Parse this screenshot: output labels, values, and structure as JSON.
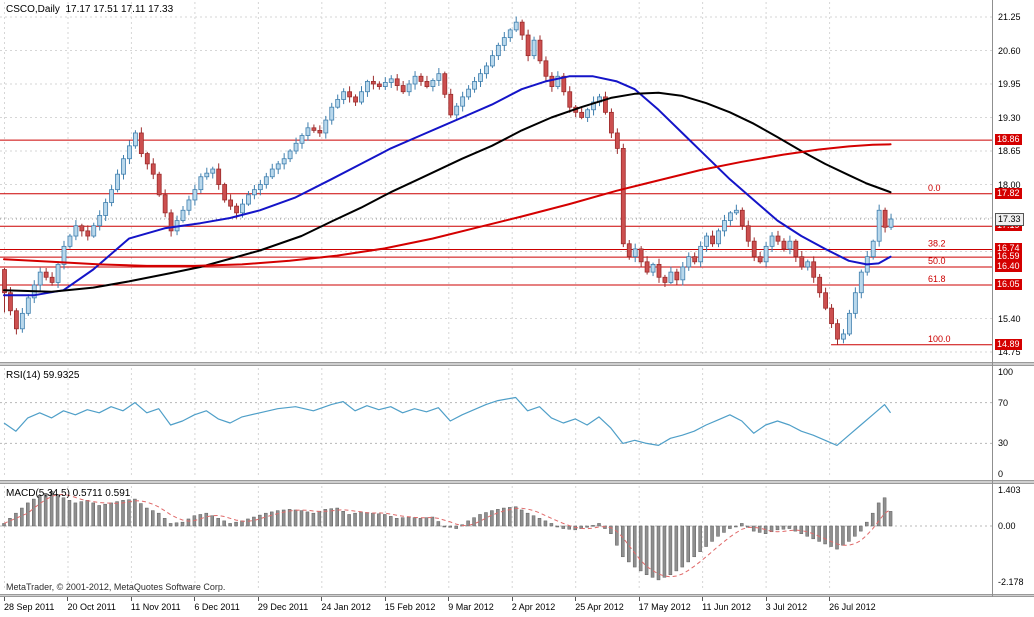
{
  "header": {
    "symbol_label": "CSCO,Daily  17.17 17.51 17.11 17.33"
  },
  "footer": {
    "copyright": "MetaTrader, © 2001-2012, MetaQuotes Software Corp."
  },
  "rsi": {
    "label": "RSI(14) 59.9325"
  },
  "macd": {
    "label": "MACD(5,34,5) 0.5711 0.591"
  },
  "axes": {
    "price_grid": [
      21.25,
      20.6,
      19.95,
      19.3,
      18.65,
      18.0,
      17.35,
      16.7,
      15.4,
      14.75
    ],
    "price_labels": [
      21.25,
      20.6,
      19.95,
      19.3,
      18.65,
      18.0,
      15.4,
      14.75
    ],
    "line_badges": [
      18.86,
      17.82,
      17.19,
      16.74,
      16.59,
      16.4,
      16.05,
      14.89
    ],
    "current_price": 17.33,
    "rsi_labels": [
      100,
      70,
      30,
      0
    ],
    "macd_labels": [
      {
        "text": "1.403",
        "v": 1.403
      },
      {
        "text": "0.00",
        "v": 0
      },
      {
        "text": "-2.178",
        "v": -2.178
      }
    ],
    "time_ticks": [
      {
        "label": "28 Sep 2011",
        "i": 0
      },
      {
        "label": "20 Oct 2011",
        "i": 10.67
      },
      {
        "label": "11 Nov 2011",
        "i": 21.33
      },
      {
        "label": "6 Dec 2011",
        "i": 32
      },
      {
        "label": "29 Dec 2011",
        "i": 42.67
      },
      {
        "label": "24 Jan 2012",
        "i": 53.33
      },
      {
        "label": "15 Feb 2012",
        "i": 64
      },
      {
        "label": "9 Mar 2012",
        "i": 74.67
      },
      {
        "label": "2 Apr 2012",
        "i": 85.33
      },
      {
        "label": "25 Apr 2012",
        "i": 96
      },
      {
        "label": "17 May 2012",
        "i": 106.67
      },
      {
        "label": "11 Jun 2012",
        "i": 117.33
      },
      {
        "label": "3 Jul 2012",
        "i": 128
      },
      {
        "label": "26 Jul 2012",
        "i": 138.67
      }
    ]
  },
  "colors": {
    "background": "#ffffff",
    "grid": "#d6d6d6",
    "level_line": "#b8b8b8",
    "candle_up_fill": "#b9d8ec",
    "candle_up_border": "#3f7fae",
    "candle_down_fill": "#cc4f4f",
    "candle_down_border": "#9c2c2c",
    "ma_blue": "#1414c8",
    "ma_black": "#000000",
    "ma_red": "#d40000",
    "fib_line": "#cc0000",
    "badge_bg": "#d40000",
    "rsi_line": "#4f9fc8",
    "macd_bar_fill": "#8f8f8f",
    "macd_bar_border": "#5f5f5f",
    "macd_signal": "#e06a6a",
    "current_line": "#999999"
  },
  "chart_data": [
    {
      "pane": "price",
      "type": "candlestick",
      "symbol": "CSCO",
      "timeframe": "Daily",
      "ohlc_current": {
        "open": 17.17,
        "high": 17.51,
        "low": 17.11,
        "close": 17.33
      },
      "y_range": [
        14.75,
        21.25
      ],
      "x_range": [
        "28 Sep 2011",
        "Aug 2012"
      ],
      "first_open": 16.35,
      "closes": [
        15.9,
        15.55,
        15.2,
        15.5,
        15.8,
        16.05,
        16.3,
        16.2,
        16.1,
        16.45,
        16.8,
        17.0,
        17.2,
        17.1,
        17.0,
        17.2,
        17.4,
        17.65,
        17.9,
        18.2,
        18.5,
        18.75,
        19.0,
        18.6,
        18.4,
        18.2,
        17.8,
        17.45,
        17.1,
        17.3,
        17.5,
        17.7,
        17.9,
        18.15,
        18.22,
        18.3,
        18.0,
        17.7,
        17.58,
        17.45,
        17.62,
        17.8,
        17.9,
        18.0,
        18.15,
        18.3,
        18.4,
        18.5,
        18.65,
        18.8,
        18.95,
        19.1,
        19.05,
        19.0,
        19.25,
        19.5,
        19.65,
        19.8,
        19.7,
        19.6,
        19.8,
        20.0,
        19.95,
        19.9,
        19.98,
        20.05,
        19.92,
        19.8,
        19.95,
        20.1,
        20.0,
        19.9,
        20.02,
        20.15,
        19.75,
        19.35,
        19.52,
        19.7,
        19.85,
        20.0,
        20.15,
        20.3,
        20.5,
        20.7,
        20.85,
        21.0,
        21.15,
        20.9,
        20.5,
        20.8,
        20.4,
        20.1,
        19.9,
        20.1,
        19.8,
        19.5,
        19.4,
        19.3,
        19.45,
        19.6,
        19.7,
        19.4,
        19.0,
        18.7,
        16.85,
        16.6,
        16.75,
        16.5,
        16.3,
        16.45,
        16.2,
        16.1,
        16.3,
        16.15,
        16.4,
        16.6,
        16.5,
        16.8,
        17.0,
        16.85,
        17.1,
        17.3,
        17.45,
        17.5,
        17.2,
        16.9,
        16.6,
        16.5,
        16.8,
        17.0,
        16.9,
        16.75,
        16.9,
        16.6,
        16.4,
        16.5,
        16.2,
        15.9,
        15.6,
        15.3,
        15.0,
        15.1,
        15.5,
        15.9,
        16.3,
        16.6,
        16.9,
        17.5,
        17.17,
        17.33
      ],
      "moving_averages": [
        {
          "name": "ma-fast-blue",
          "color_key": "ma_blue",
          "points": [
            [
              0,
              15.85
            ],
            [
              5,
              15.85
            ],
            [
              10,
              15.95
            ],
            [
              15,
              16.35
            ],
            [
              21,
              16.95
            ],
            [
              27,
              17.15
            ],
            [
              33,
              17.25
            ],
            [
              38,
              17.35
            ],
            [
              43,
              17.5
            ],
            [
              49,
              17.75
            ],
            [
              55,
              18.1
            ],
            [
              60,
              18.4
            ],
            [
              65,
              18.7
            ],
            [
              70,
              18.95
            ],
            [
              77,
              19.3
            ],
            [
              82,
              19.55
            ],
            [
              87,
              19.85
            ],
            [
              91,
              20.0
            ],
            [
              95,
              20.1
            ],
            [
              99,
              20.1
            ],
            [
              103,
              20.0
            ],
            [
              106,
              19.85
            ],
            [
              110,
              19.45
            ],
            [
              114,
              19.0
            ],
            [
              118,
              18.55
            ],
            [
              122,
              18.1
            ],
            [
              126,
              17.7
            ],
            [
              130,
              17.3
            ],
            [
              134,
              17.0
            ],
            [
              138,
              16.75
            ],
            [
              142,
              16.52
            ],
            [
              145,
              16.45
            ],
            [
              147,
              16.47
            ],
            [
              149,
              16.6
            ]
          ]
        },
        {
          "name": "ma-mid-black",
          "color_key": "ma_black",
          "points": [
            [
              0,
              15.95
            ],
            [
              8,
              15.92
            ],
            [
              15,
              16.0
            ],
            [
              21,
              16.12
            ],
            [
              28,
              16.28
            ],
            [
              33,
              16.4
            ],
            [
              43,
              16.72
            ],
            [
              50,
              17.0
            ],
            [
              55,
              17.28
            ],
            [
              60,
              17.55
            ],
            [
              65,
              17.85
            ],
            [
              70,
              18.12
            ],
            [
              77,
              18.5
            ],
            [
              82,
              18.75
            ],
            [
              87,
              19.05
            ],
            [
              92,
              19.3
            ],
            [
              97,
              19.5
            ],
            [
              102,
              19.68
            ],
            [
              106,
              19.76
            ],
            [
              110,
              19.78
            ],
            [
              114,
              19.72
            ],
            [
              118,
              19.58
            ],
            [
              122,
              19.4
            ],
            [
              126,
              19.18
            ],
            [
              130,
              18.92
            ],
            [
              134,
              18.65
            ],
            [
              138,
              18.4
            ],
            [
              142,
              18.18
            ],
            [
              145,
              18.02
            ],
            [
              149,
              17.85
            ]
          ]
        },
        {
          "name": "ma-slow-red",
          "color_key": "ma_red",
          "points": [
            [
              0,
              16.55
            ],
            [
              8,
              16.5
            ],
            [
              16,
              16.45
            ],
            [
              24,
              16.42
            ],
            [
              32,
              16.42
            ],
            [
              40,
              16.45
            ],
            [
              48,
              16.52
            ],
            [
              56,
              16.62
            ],
            [
              64,
              16.76
            ],
            [
              72,
              16.95
            ],
            [
              80,
              17.18
            ],
            [
              87,
              17.38
            ],
            [
              95,
              17.62
            ],
            [
              103,
              17.88
            ],
            [
              110,
              18.08
            ],
            [
              117,
              18.28
            ],
            [
              124,
              18.44
            ],
            [
              131,
              18.58
            ],
            [
              137,
              18.68
            ],
            [
              142,
              18.74
            ],
            [
              146,
              18.77
            ],
            [
              149,
              18.78
            ]
          ]
        }
      ],
      "red_horizontal_lines": [
        18.86,
        17.19,
        16.59
      ],
      "fibonacci": {
        "levels": [
          {
            "label": "0.0",
            "price": 17.82
          },
          {
            "label": "38.2",
            "price": 16.74
          },
          {
            "label": "50.0",
            "price": 16.4
          },
          {
            "label": "61.8",
            "price": 16.05
          },
          {
            "label": "100.0",
            "price": 14.89
          }
        ],
        "hundred_line_starts_at_bar": 139
      },
      "current_price": 17.33
    },
    {
      "pane": "rsi",
      "type": "line",
      "name": "RSI(14)",
      "current": 59.9325,
      "range": [
        0,
        100
      ],
      "levels": [
        70,
        30
      ],
      "points": [
        [
          0,
          50
        ],
        [
          2,
          42
        ],
        [
          4,
          55
        ],
        [
          6,
          60
        ],
        [
          8,
          55
        ],
        [
          10,
          62
        ],
        [
          12,
          58
        ],
        [
          14,
          63
        ],
        [
          16,
          60
        ],
        [
          18,
          66
        ],
        [
          20,
          62
        ],
        [
          22,
          70
        ],
        [
          24,
          60
        ],
        [
          26,
          64
        ],
        [
          28,
          48
        ],
        [
          30,
          52
        ],
        [
          32,
          58
        ],
        [
          34,
          62
        ],
        [
          36,
          54
        ],
        [
          38,
          50
        ],
        [
          40,
          56
        ],
        [
          43,
          60
        ],
        [
          46,
          64
        ],
        [
          49,
          66
        ],
        [
          52,
          62
        ],
        [
          55,
          68
        ],
        [
          57,
          71
        ],
        [
          59,
          62
        ],
        [
          61,
          67
        ],
        [
          63,
          63
        ],
        [
          65,
          66
        ],
        [
          67,
          60
        ],
        [
          69,
          64
        ],
        [
          71,
          61
        ],
        [
          73,
          65
        ],
        [
          75,
          52
        ],
        [
          77,
          58
        ],
        [
          79,
          63
        ],
        [
          81,
          68
        ],
        [
          83,
          72
        ],
        [
          85,
          74
        ],
        [
          86,
          75
        ],
        [
          88,
          62
        ],
        [
          90,
          66
        ],
        [
          92,
          55
        ],
        [
          94,
          50
        ],
        [
          96,
          54
        ],
        [
          98,
          48
        ],
        [
          100,
          56
        ],
        [
          102,
          45
        ],
        [
          104,
          30
        ],
        [
          106,
          33
        ],
        [
          108,
          30
        ],
        [
          110,
          28
        ],
        [
          112,
          35
        ],
        [
          114,
          38
        ],
        [
          116,
          42
        ],
        [
          118,
          48
        ],
        [
          120,
          53
        ],
        [
          122,
          58
        ],
        [
          124,
          52
        ],
        [
          126,
          40
        ],
        [
          128,
          48
        ],
        [
          130,
          52
        ],
        [
          132,
          48
        ],
        [
          134,
          42
        ],
        [
          136,
          38
        ],
        [
          138,
          33
        ],
        [
          140,
          28
        ],
        [
          142,
          38
        ],
        [
          144,
          48
        ],
        [
          146,
          58
        ],
        [
          148,
          68
        ],
        [
          149,
          60
        ]
      ]
    },
    {
      "pane": "macd",
      "type": "histogram+signal",
      "name": "MACD(5,34,5)",
      "current_macd": 0.5711,
      "current_signal": 0.591,
      "range": [
        -2.178,
        1.403
      ],
      "points": [
        [
          0,
          0.1
        ],
        [
          2,
          0.5
        ],
        [
          4,
          0.9
        ],
        [
          6,
          1.2
        ],
        [
          8,
          1.35
        ],
        [
          10,
          1.1
        ],
        [
          12,
          0.9
        ],
        [
          14,
          1.0
        ],
        [
          16,
          0.8
        ],
        [
          18,
          0.9
        ],
        [
          20,
          1.0
        ],
        [
          22,
          1.05
        ],
        [
          24,
          0.7
        ],
        [
          26,
          0.5
        ],
        [
          28,
          0.1
        ],
        [
          30,
          0.15
        ],
        [
          32,
          0.4
        ],
        [
          34,
          0.5
        ],
        [
          36,
          0.3
        ],
        [
          38,
          0.1
        ],
        [
          40,
          0.2
        ],
        [
          42,
          0.35
        ],
        [
          44,
          0.5
        ],
        [
          46,
          0.6
        ],
        [
          48,
          0.65
        ],
        [
          50,
          0.6
        ],
        [
          52,
          0.5
        ],
        [
          54,
          0.65
        ],
        [
          56,
          0.7
        ],
        [
          58,
          0.45
        ],
        [
          60,
          0.55
        ],
        [
          62,
          0.5
        ],
        [
          64,
          0.45
        ],
        [
          66,
          0.3
        ],
        [
          68,
          0.35
        ],
        [
          70,
          0.3
        ],
        [
          72,
          0.35
        ],
        [
          74,
          0.0
        ],
        [
          76,
          -0.1
        ],
        [
          78,
          0.2
        ],
        [
          80,
          0.45
        ],
        [
          82,
          0.6
        ],
        [
          84,
          0.7
        ],
        [
          86,
          0.75
        ],
        [
          88,
          0.5
        ],
        [
          90,
          0.3
        ],
        [
          92,
          0.1
        ],
        [
          94,
          -0.1
        ],
        [
          96,
          -0.15
        ],
        [
          98,
          -0.05
        ],
        [
          100,
          0.1
        ],
        [
          102,
          -0.3
        ],
        [
          104,
          -1.2
        ],
        [
          106,
          -1.6
        ],
        [
          108,
          -1.9
        ],
        [
          110,
          -2.1
        ],
        [
          112,
          -1.9
        ],
        [
          114,
          -1.6
        ],
        [
          116,
          -1.2
        ],
        [
          118,
          -0.8
        ],
        [
          120,
          -0.4
        ],
        [
          122,
          -0.1
        ],
        [
          124,
          0.1
        ],
        [
          126,
          -0.2
        ],
        [
          128,
          -0.3
        ],
        [
          130,
          -0.15
        ],
        [
          132,
          -0.1
        ],
        [
          134,
          -0.3
        ],
        [
          136,
          -0.5
        ],
        [
          138,
          -0.7
        ],
        [
          140,
          -0.9
        ],
        [
          142,
          -0.6
        ],
        [
          144,
          -0.2
        ],
        [
          146,
          0.5
        ],
        [
          147,
          0.9
        ],
        [
          148,
          1.1
        ],
        [
          149,
          0.57
        ]
      ]
    }
  ]
}
